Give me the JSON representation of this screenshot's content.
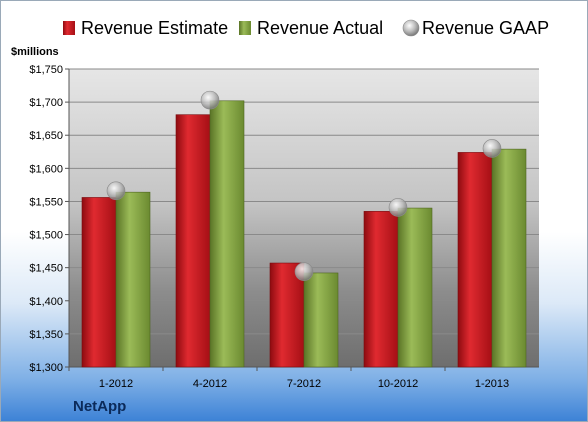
{
  "company": "NetApp",
  "colors": {
    "estimate": "#c8141c",
    "actual": "#7f9e3c",
    "gaap": "#b8b8b8"
  },
  "chart_data": {
    "type": "bar",
    "ylabel": "$millions",
    "ylim": [
      1300,
      1750
    ],
    "ytick_step": 50,
    "ytick_labels": [
      "$1,300",
      "$1,350",
      "$1,400",
      "$1,450",
      "$1,500",
      "$1,550",
      "$1,600",
      "$1,650",
      "$1,700",
      "$1,750"
    ],
    "grid": true,
    "legend_position": "top",
    "categories": [
      "1-2012",
      "4-2012",
      "7-2012",
      "10-2012",
      "1-2013"
    ],
    "series": [
      {
        "name": "Revenue Estimate",
        "kind": "bar",
        "values": [
          1556,
          1681,
          1457,
          1535,
          1624
        ]
      },
      {
        "name": "Revenue Actual",
        "kind": "bar",
        "values": [
          1564,
          1702,
          1442,
          1540,
          1629
        ]
      },
      {
        "name": "Revenue GAAP",
        "kind": "marker",
        "values": [
          1566,
          1703,
          1444,
          1541,
          1630
        ]
      }
    ]
  }
}
